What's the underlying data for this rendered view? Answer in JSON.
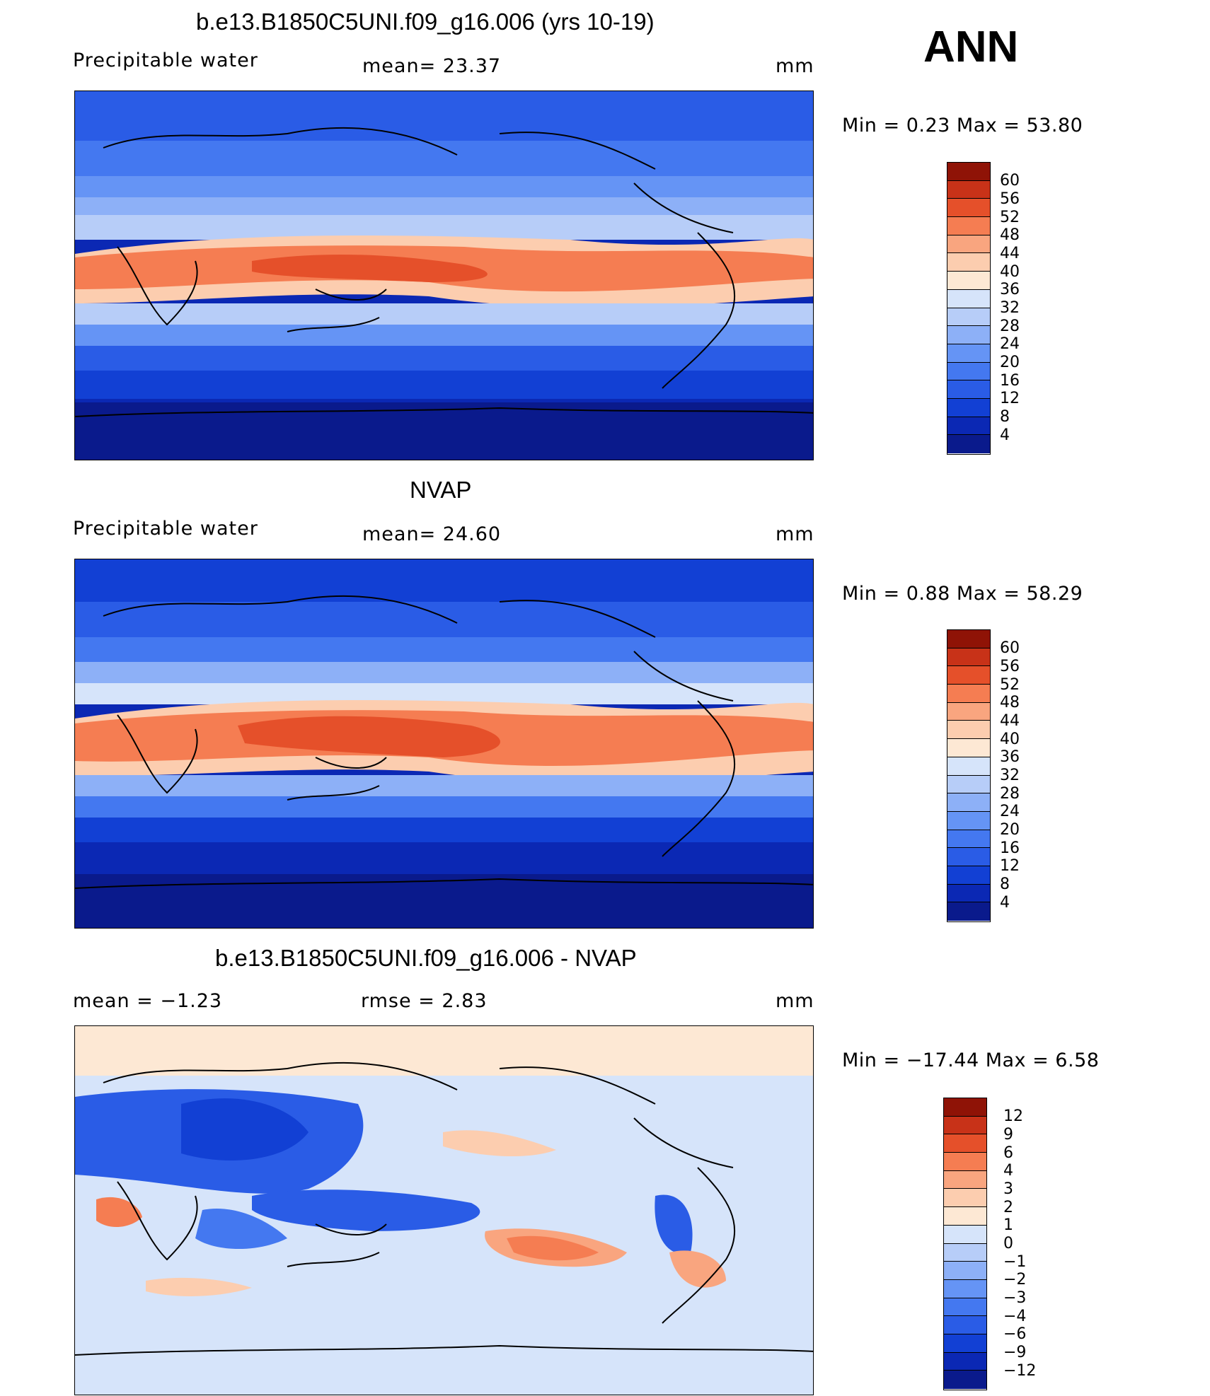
{
  "season": "ANN",
  "panels": [
    {
      "title": "b.e13.B1850C5UNI.f09_g16.006 (yrs 10-19)",
      "left_label": "Precipitable  water",
      "center_label": "mean=   23.37",
      "units": "mm",
      "minmax": "Min  =     0.23  Max  =     53.80",
      "colorbar_levels": [
        "60",
        "56",
        "52",
        "48",
        "44",
        "40",
        "36",
        "32",
        "28",
        "24",
        "20",
        "16",
        "12",
        "8",
        "4"
      ]
    },
    {
      "title": "NVAP",
      "left_label": "Precipitable  water",
      "center_label": "mean=   24.60",
      "units": "mm",
      "minmax": "Min  =     0.88  Max  =     58.29",
      "colorbar_levels": [
        "60",
        "56",
        "52",
        "48",
        "44",
        "40",
        "36",
        "32",
        "28",
        "24",
        "20",
        "16",
        "12",
        "8",
        "4"
      ]
    },
    {
      "title": "b.e13.B1850C5UNI.f09_g16.006 - NVAP",
      "left_label": "mean  =    −1.23",
      "center_label": "rmse  =     2.83",
      "units": "mm",
      "minmax": "Min  = −17.44  Max  =      6.58",
      "colorbar_levels": [
        "12",
        "9",
        "6",
        "4",
        "3",
        "2",
        "1",
        "0",
        "−1",
        "−2",
        "−3",
        "−4",
        "−6",
        "−9",
        "−12"
      ]
    }
  ],
  "colors": {
    "abs_scale": [
      "#0a1a8c",
      "#0b28b4",
      "#1240d4",
      "#2a5ce6",
      "#4478f0",
      "#6594f5",
      "#8db0f7",
      "#b7cdf8",
      "#d6e4fa",
      "#fde8d4",
      "#fccdaf",
      "#f9a57f",
      "#f57d52",
      "#e5502a",
      "#c83218",
      "#8f1306"
    ],
    "diff_scale": [
      "#0a1a8c",
      "#0b28b4",
      "#1240d4",
      "#2a5ce6",
      "#4478f0",
      "#6594f5",
      "#8db0f7",
      "#b7cdf8",
      "#d6e4fa",
      "#fde8d4",
      "#fccdaf",
      "#f9a57f",
      "#f57d52",
      "#e5502a",
      "#c83218",
      "#8f1306"
    ]
  }
}
